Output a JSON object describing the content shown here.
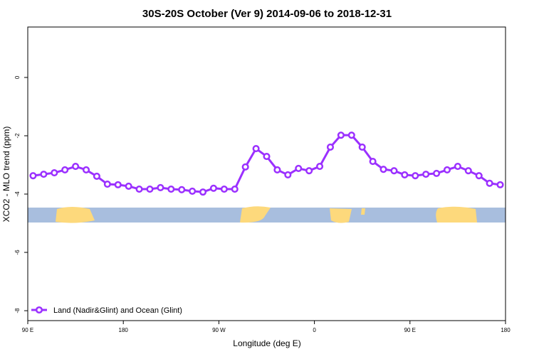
{
  "chart_data": {
    "type": "line",
    "title": "30S-20S October (Ver 9)   2014-09-06 to 2018-12-31",
    "x_label": "Longitude (deg E)",
    "y_label": "XCO2 - MLO trend (ppm)",
    "x": [
      95,
      105,
      115,
      125,
      135,
      145,
      155,
      165,
      175,
      185,
      195,
      205,
      215,
      225,
      235,
      245,
      255,
      265,
      275,
      285,
      295,
      305,
      315,
      325,
      335,
      345,
      355,
      365,
      375,
      385,
      395,
      405,
      415,
      425,
      435,
      445,
      455,
      465,
      475,
      485,
      495,
      505,
      515,
      525,
      535
    ],
    "series": [
      {
        "name": "Land (Nadir&Glint) and Ocean (Glint)",
        "color": "#9b30ff",
        "values": [
          -3.37,
          -3.32,
          -3.27,
          -3.17,
          -3.05,
          -3.17,
          -3.39,
          -3.66,
          -3.68,
          -3.73,
          -3.83,
          -3.83,
          -3.78,
          -3.83,
          -3.85,
          -3.9,
          -3.93,
          -3.8,
          -3.83,
          -3.83,
          -3.07,
          -2.44,
          -2.71,
          -3.17,
          -3.34,
          -3.12,
          -3.2,
          -3.05,
          -2.39,
          -1.98,
          -1.98,
          -2.39,
          -2.88,
          -3.15,
          -3.2,
          -3.34,
          -3.37,
          -3.32,
          -3.29,
          -3.17,
          -3.05,
          -3.2,
          -3.37,
          -3.63,
          -3.68
        ]
      }
    ],
    "xlim": [
      90,
      540
    ],
    "xticks": [
      {
        "value": 90,
        "label": "90 E"
      },
      180,
      {
        "value": 270,
        "label": "90 W"
      },
      {
        "value": 360,
        "label": "0"
      },
      {
        "value": 450,
        "label": "90 E"
      },
      {
        "value": 540,
        "label": "180"
      }
    ],
    "ylim": [
      -8.34,
      1.73
    ],
    "yticks": [
      0,
      -2,
      -4,
      -6,
      -8
    ],
    "legend": "bottom-left"
  }
}
